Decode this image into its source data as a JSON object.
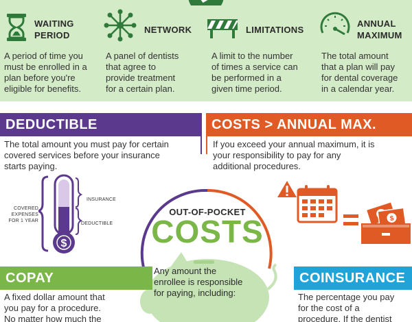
{
  "terms": [
    {
      "title_line1": "WAITING",
      "title_line2": "PERIOD",
      "icon": "hourglass-icon",
      "description": [
        "A period of time you",
        "must be enrolled in a",
        "plan before you're",
        "eligible for benefits."
      ]
    },
    {
      "title_line1": "NETWORK",
      "icon": "network-icon",
      "description": [
        "A panel of dentists",
        "that agree to",
        "provide treatment",
        "for a certain plan."
      ]
    },
    {
      "title_line1": "LIMITATIONS",
      "icon": "barrier-icon",
      "description": [
        "A limit to the number",
        "of times a service can",
        "be performed in a",
        "given time period."
      ]
    },
    {
      "title_line1": "ANNUAL",
      "title_line2": "MAXIMUM",
      "icon": "gauge-icon",
      "description": [
        "The total amount",
        "that a plan will pay",
        "for dental coverage",
        "in a calendar year."
      ]
    }
  ],
  "deductible": {
    "title": "DEDUCTIBLE",
    "body": [
      "The total amount you must pay for certain",
      "covered services before your insurance",
      "starts paying."
    ],
    "labels": {
      "covered_1": "COVERED",
      "covered_2": "EXPENSES",
      "covered_3": "FOR 1 YEAR",
      "insurance": "INSURANCE",
      "deductible": "DEDUCTIBLE"
    }
  },
  "costs_annual": {
    "title": "COSTS > ANNUAL MAX.",
    "body": [
      "If you exceed your annual maximum, it is",
      "your responsibility to pay for any",
      "additional procedures."
    ]
  },
  "out_of_pocket": {
    "top": "OUT-OF-POCKET",
    "big": "COSTS",
    "body": [
      "Any amount the",
      "enrollee is responsible",
      "for paying, including:"
    ]
  },
  "copay": {
    "title": "COPAY",
    "body": [
      "A fixed dollar amount that",
      "you pay for a procedure.",
      "No matter how much the"
    ]
  },
  "coinsurance": {
    "title": "COINSURANCE",
    "body": [
      "The percentage you pay",
      "for the cost of a",
      "procedure. If the dentist"
    ]
  },
  "colors": {
    "green_band": "#d4ebc8",
    "dark_green": "#2f7a3a",
    "purple": "#5b3a8e",
    "orange": "#e05a26",
    "light_green": "#7ab648",
    "blue": "#1fa3d8"
  }
}
